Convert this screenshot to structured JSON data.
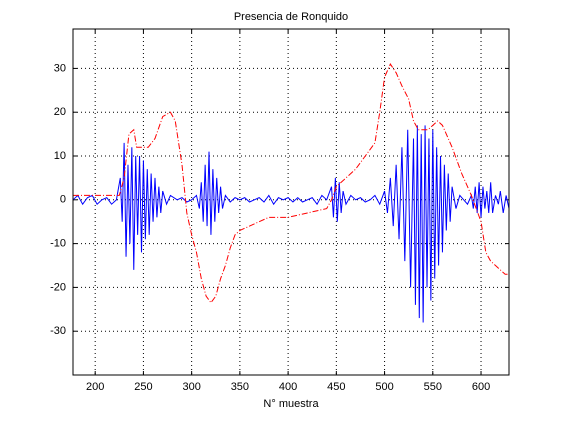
{
  "chart_data": {
    "type": "line",
    "title": "Presencia de Ronquido",
    "x_label": "N° muestra",
    "xlim": [
      177,
      629
    ],
    "ylim": [
      -40,
      39
    ],
    "xticks": [
      200,
      250,
      300,
      350,
      400,
      450,
      500,
      550,
      600
    ],
    "yticks": [
      -30,
      -20,
      -10,
      0,
      10,
      20,
      30
    ],
    "grid": true,
    "series": [
      {
        "color": "#0000ff",
        "dash": "solid",
        "x": [
          177,
          182,
          187,
          192,
          197,
          202,
          207,
          212,
          217,
          222,
          226,
          228,
          230,
          232,
          234,
          236,
          238,
          240,
          242,
          244,
          246,
          248,
          250,
          252,
          254,
          256,
          258,
          260,
          262,
          264,
          266,
          268,
          270,
          274,
          278,
          285,
          290,
          295,
          300,
          305,
          308,
          310,
          312,
          314,
          316,
          318,
          320,
          322,
          324,
          326,
          328,
          330,
          332,
          335,
          340,
          345,
          350,
          355,
          360,
          365,
          370,
          375,
          380,
          385,
          390,
          395,
          400,
          405,
          410,
          415,
          420,
          425,
          430,
          435,
          440,
          445,
          447,
          449,
          451,
          453,
          455,
          457,
          460,
          465,
          470,
          475,
          480,
          485,
          490,
          495,
          500,
          503,
          506,
          509,
          512,
          515,
          518,
          521,
          524,
          527,
          530,
          532,
          534,
          536,
          538,
          540,
          542,
          544,
          546,
          548,
          550,
          552,
          554,
          556,
          558,
          560,
          562,
          564,
          566,
          568,
          570,
          574,
          578,
          582,
          586,
          590,
          592,
          594,
          596,
          598,
          600,
          602,
          604,
          606,
          608,
          610,
          612,
          615,
          618,
          620,
          623,
          626,
          629
        ],
        "values": [
          0,
          1,
          -1,
          0.5,
          1,
          -1,
          0,
          0.5,
          -1,
          0,
          5,
          -5,
          13,
          -13,
          8,
          -10,
          12,
          -16,
          10,
          -8,
          10,
          -12,
          9,
          -9,
          7,
          -8,
          6,
          -5,
          5,
          -4,
          3,
          -3,
          2,
          -1,
          1,
          0,
          0.5,
          -0.5,
          0,
          1,
          -2,
          4,
          -5,
          8,
          -6,
          11,
          -8,
          7,
          -5,
          5,
          -3,
          3,
          -2,
          1,
          -0.5,
          0.5,
          0,
          0.5,
          -0.5,
          0,
          0.5,
          -0.5,
          1,
          -1,
          0.5,
          0,
          0.5,
          -0.5,
          0.5,
          -0.5,
          0,
          0.5,
          -1,
          1,
          0,
          3,
          -4,
          5,
          -5,
          4,
          -3,
          2,
          -1,
          1,
          0,
          0.5,
          -0.5,
          0,
          1,
          -1,
          2,
          -3,
          5,
          -6,
          8,
          -9,
          12,
          -14,
          16,
          -20,
          14,
          -24,
          17,
          -27,
          15,
          -28,
          17,
          -20,
          14,
          -23,
          16,
          -18,
          12,
          -15,
          10,
          -12,
          8,
          -7,
          6,
          -5,
          3,
          -2,
          1,
          0,
          -1,
          1,
          -2,
          3,
          -3,
          4,
          -4,
          3,
          -2,
          2,
          -3,
          4,
          -3,
          1,
          -1,
          2,
          -3,
          1,
          -2
        ]
      },
      {
        "color": "#ff0000",
        "dash": "dashdot",
        "x": [
          177,
          225,
          230,
          235,
          240,
          243,
          255,
          262,
          270,
          278,
          283,
          290,
          295,
          300,
          305,
          310,
          315,
          320,
          325,
          330,
          335,
          340,
          345,
          350,
          360,
          370,
          380,
          400,
          420,
          440,
          445,
          450,
          460,
          470,
          480,
          490,
          495,
          500,
          506,
          512,
          518,
          525,
          530,
          535,
          545,
          550,
          555,
          560,
          570,
          580,
          590,
          595,
          600,
          605,
          610,
          615,
          620,
          625,
          629
        ],
        "values": [
          1,
          1,
          5,
          15,
          16,
          12,
          12,
          14,
          19,
          20,
          18,
          8,
          -3,
          -8,
          -12,
          -18,
          -22,
          -23.5,
          -22,
          -18,
          -15,
          -11,
          -8,
          -7,
          -6,
          -5,
          -4,
          -4,
          -3,
          -2,
          0,
          3,
          5,
          7,
          10,
          13,
          20,
          28,
          31,
          29,
          26,
          23,
          18,
          16,
          16,
          17,
          18,
          17,
          12,
          6,
          1,
          -2,
          -5,
          -12,
          -14,
          -15,
          -16,
          -17,
          -17
        ]
      }
    ]
  }
}
